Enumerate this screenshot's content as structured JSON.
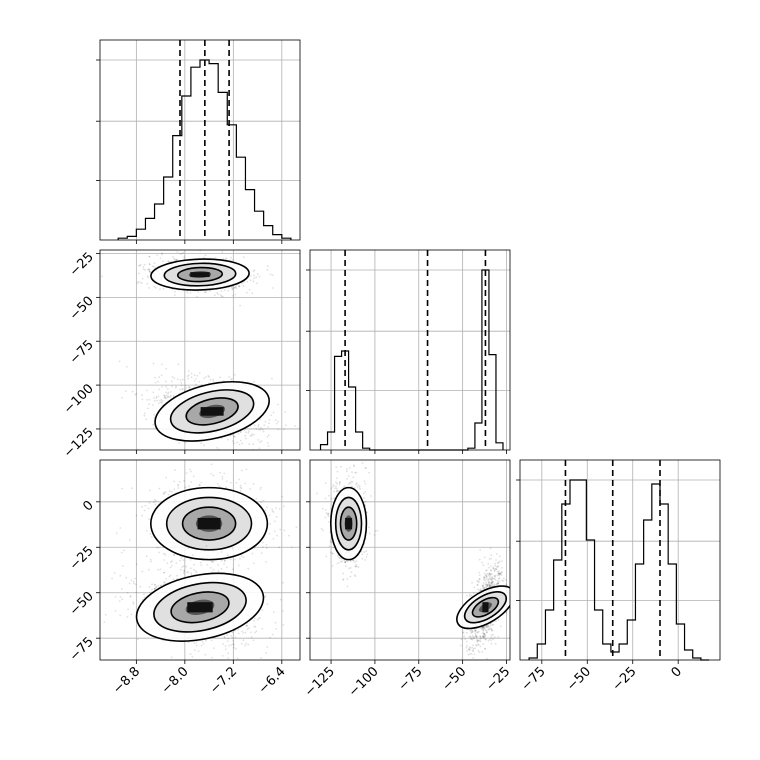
{
  "chart_data": {
    "type": "corner",
    "grid": true,
    "parameters": [
      {
        "id": "p0",
        "range": [
          -9.4,
          -6.1
        ],
        "ticks": [
          -8.8,
          -8.0,
          -7.2,
          -6.4
        ],
        "tick_labels": [
          "−8.8",
          "−8.0",
          "−7.2",
          "−6.4"
        ]
      },
      {
        "id": "p1",
        "range": [
          -137,
          -23
        ],
        "ticks": [
          -125,
          -100,
          -75,
          -50,
          -25
        ],
        "tick_labels": [
          "−125",
          "−100",
          "−75",
          "−50",
          "−25"
        ]
      },
      {
        "id": "p2",
        "range": [
          -87,
          23
        ],
        "ticks": [
          -75,
          -50,
          -25,
          0
        ],
        "tick_labels": [
          "−75",
          "−50",
          "−25",
          "0"
        ]
      }
    ],
    "histograms": [
      {
        "param": "p0",
        "bin_edges": [
          -9.1,
          -8.95,
          -8.8,
          -8.65,
          -8.5,
          -8.35,
          -8.2,
          -8.05,
          -7.9,
          -7.75,
          -7.6,
          -7.45,
          -7.3,
          -7.15,
          -7.0,
          -6.85,
          -6.7,
          -6.55,
          -6.4,
          -6.25
        ],
        "counts": [
          1,
          2,
          6,
          12,
          20,
          35,
          58,
          80,
          96,
          100,
          98,
          82,
          64,
          46,
          28,
          16,
          8,
          3,
          1
        ],
        "quantiles": [
          -8.08,
          -7.67,
          -7.27
        ]
      },
      {
        "param": "p1",
        "bin_edges": [
          -131,
          -127,
          -123,
          -119,
          -115,
          -111,
          -107,
          -103,
          -99,
          -95,
          -91,
          -87,
          -83,
          -79,
          -75,
          -71,
          -67,
          -63,
          -59,
          -55,
          -51,
          -47,
          -43,
          -39,
          -35,
          -31,
          -27
        ],
        "counts": [
          3,
          10,
          52,
          55,
          35,
          10,
          1,
          0,
          0,
          0,
          0,
          0,
          0,
          0,
          0,
          0,
          0,
          0,
          0,
          0,
          0,
          1,
          15,
          100,
          53,
          4
        ],
        "quantiles": [
          -117,
          -70,
          -37
        ]
      },
      {
        "param": "p2",
        "bin_edges": [
          -82,
          -77.5,
          -73,
          -68.5,
          -64,
          -59.5,
          -55,
          -50.5,
          -46,
          -41.5,
          -37,
          -32.5,
          -28,
          -23.5,
          -19,
          -14.5,
          -10,
          -5.5,
          -1,
          3.5,
          8,
          12.5,
          17
        ],
        "counts": [
          1,
          8,
          25,
          50,
          78,
          90,
          90,
          60,
          25,
          8,
          4,
          8,
          20,
          48,
          70,
          88,
          78,
          48,
          18,
          5,
          1,
          0
        ],
        "quantiles": [
          -62,
          -36,
          -10
        ]
      }
    ],
    "scatter_panels": [
      {
        "x": "p0",
        "y": "p1",
        "modes": [
          {
            "center": [
              -7.75,
              -37
            ],
            "sx": 0.32,
            "sy": 4.0,
            "weight": 0.5,
            "tilt": 0.08
          },
          {
            "center": [
              -7.55,
              -115
            ],
            "sx": 0.38,
            "sy": 7.0,
            "weight": 0.5,
            "tilt": 0.45
          }
        ]
      },
      {
        "x": "p0",
        "y": "p2",
        "modes": [
          {
            "center": [
              -7.6,
              -12
            ],
            "sx": 0.38,
            "sy": 9.0,
            "weight": 0.5,
            "tilt": 0.0
          },
          {
            "center": [
              -7.75,
              -58
            ],
            "sx": 0.42,
            "sy": 8.0,
            "weight": 0.5,
            "tilt": 0.35
          }
        ]
      },
      {
        "x": "p1",
        "y": "p2",
        "modes": [
          {
            "center": [
              -115,
              -12
            ],
            "sx": 4.0,
            "sy": 9.0,
            "weight": 0.5,
            "tilt": 0.0
          },
          {
            "center": [
              -37,
              -58
            ],
            "sx": 3.5,
            "sy": 8.0,
            "weight": 0.5,
            "tilt": -0.7
          }
        ]
      }
    ]
  }
}
